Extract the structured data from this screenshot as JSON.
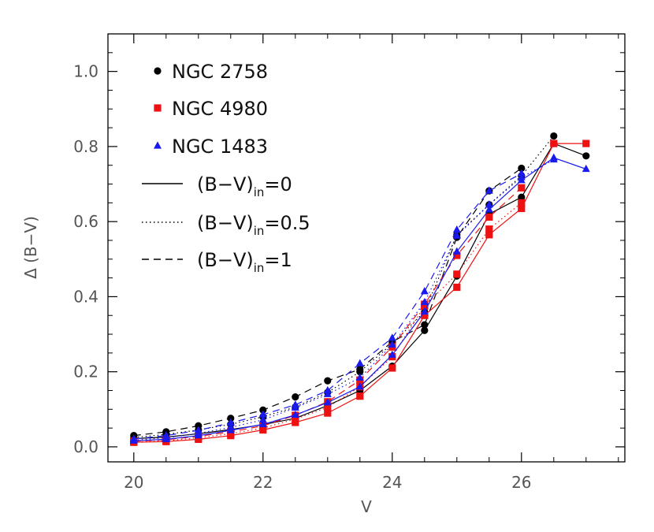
{
  "chart_data": {
    "type": "line",
    "title": "",
    "xlabel": "V",
    "ylabel": "Δ (B−V)",
    "xlim": [
      19.6,
      27.6
    ],
    "ylim": [
      -0.04,
      1.1
    ],
    "xticks": [
      20,
      22,
      24,
      26
    ],
    "xtick_labels": [
      "20",
      "22",
      "24",
      "26"
    ],
    "yticks": [
      0.0,
      0.2,
      0.4,
      0.6,
      0.8,
      1.0
    ],
    "ytick_labels": [
      "0.0",
      "0.2",
      "0.4",
      "0.6",
      "0.8",
      "1.0"
    ],
    "grid": false,
    "legend_placement": "top-left",
    "x": [
      20,
      20.5,
      21,
      21.5,
      22,
      22.5,
      23,
      23.5,
      24,
      24.5,
      25,
      25.5,
      26,
      26.5,
      27
    ],
    "series": [
      {
        "name": "NGC 2758",
        "color": "#000000",
        "marker": "circle",
        "line": "solid",
        "values": [
          0.022,
          0.026,
          0.035,
          0.046,
          0.059,
          0.076,
          0.11,
          0.15,
          0.215,
          0.31,
          0.455,
          0.62,
          0.665,
          0.808,
          0.775
        ]
      },
      {
        "name": "NGC 2758",
        "color": "#000000",
        "marker": "circle",
        "line": "dotted",
        "values": [
          0.025,
          0.033,
          0.045,
          0.06,
          0.08,
          0.106,
          0.145,
          0.2,
          0.275,
          0.36,
          0.565,
          0.645,
          0.722,
          0.828,
          null
        ]
      },
      {
        "name": "NGC 2758",
        "color": "#000000",
        "marker": "circle",
        "line": "dashed",
        "values": [
          0.03,
          0.04,
          0.056,
          0.076,
          0.098,
          0.133,
          0.176,
          0.207,
          0.28,
          0.325,
          0.558,
          0.682,
          0.742,
          null,
          null
        ]
      },
      {
        "name": "NGC 4980",
        "color": "#ee1111",
        "marker": "square",
        "line": "solid",
        "values": [
          0.012,
          0.014,
          0.02,
          0.03,
          0.045,
          0.065,
          0.09,
          0.135,
          0.21,
          0.35,
          0.425,
          0.565,
          0.635,
          0.808,
          0.808
        ]
      },
      {
        "name": "NGC 4980",
        "color": "#ee1111",
        "marker": "square",
        "line": "dotted",
        "values": [
          0.013,
          0.016,
          0.024,
          0.035,
          0.05,
          0.074,
          0.105,
          0.16,
          0.24,
          0.375,
          0.46,
          0.58,
          0.65,
          null,
          null
        ]
      },
      {
        "name": "NGC 4980",
        "color": "#ee1111",
        "marker": "square",
        "line": "dashed",
        "values": [
          0.015,
          0.019,
          0.028,
          0.04,
          0.056,
          0.084,
          0.12,
          0.178,
          0.266,
          0.38,
          0.51,
          0.612,
          0.69,
          null,
          null
        ]
      },
      {
        "name": "NGC 1483",
        "color": "#1a1aee",
        "marker": "triangle",
        "line": "solid",
        "values": [
          0.016,
          0.02,
          0.03,
          0.044,
          0.06,
          0.085,
          0.118,
          0.16,
          0.245,
          0.36,
          0.52,
          0.632,
          0.71,
          0.77,
          0.74
        ]
      },
      {
        "name": "NGC 1483",
        "color": "#1a1aee",
        "marker": "triangle",
        "line": "dotted",
        "values": [
          0.018,
          0.024,
          0.036,
          0.052,
          0.072,
          0.104,
          0.14,
          0.184,
          0.272,
          0.385,
          0.562,
          0.645,
          0.718,
          0.765,
          null
        ]
      },
      {
        "name": "NGC 1483",
        "color": "#1a1aee",
        "marker": "triangle",
        "line": "dashed",
        "values": [
          0.021,
          0.03,
          0.044,
          0.064,
          0.086,
          0.112,
          0.15,
          0.222,
          0.29,
          0.414,
          0.578,
          0.682,
          0.728,
          null,
          null
        ]
      }
    ],
    "legend": {
      "markers": [
        {
          "label": "NGC 2758",
          "color": "#000000",
          "marker": "circle"
        },
        {
          "label": "NGC 4980",
          "color": "#ee1111",
          "marker": "square"
        },
        {
          "label": "NGC 1483",
          "color": "#1a1aee",
          "marker": "triangle"
        }
      ],
      "lines": [
        {
          "label_main": "(B−V)",
          "label_sub": "in",
          "label_value": "=0",
          "line": "solid"
        },
        {
          "label_main": "(B−V)",
          "label_sub": "in",
          "label_value": "=0.5",
          "line": "dotted"
        },
        {
          "label_main": "(B−V)",
          "label_sub": "in",
          "label_value": "=1",
          "line": "dashed"
        }
      ]
    }
  }
}
